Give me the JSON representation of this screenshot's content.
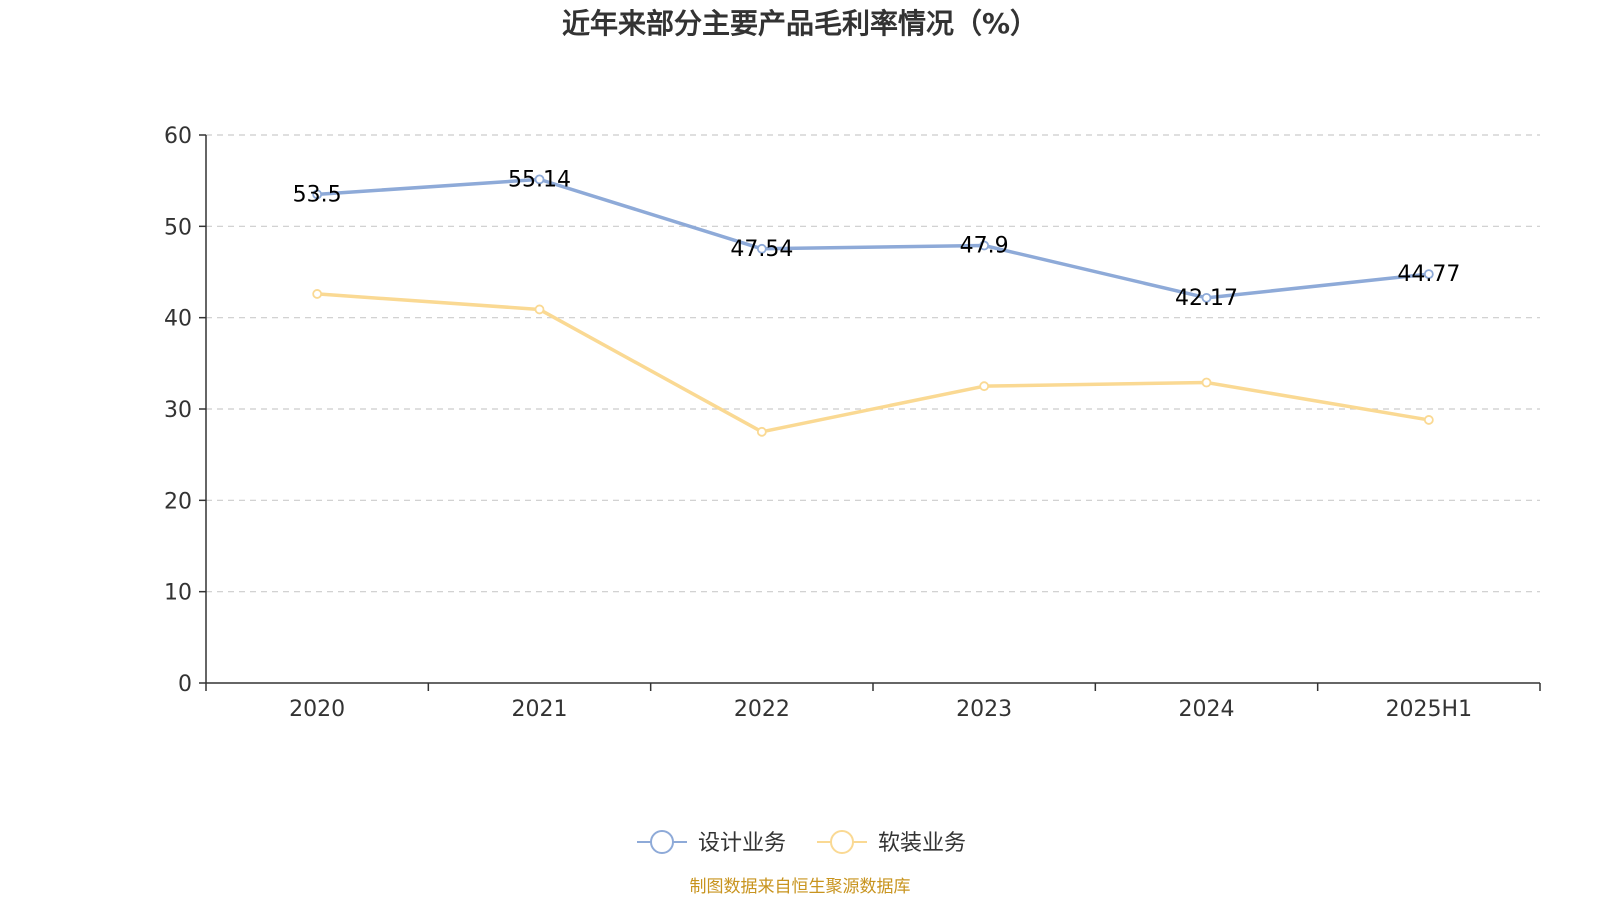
{
  "chart_data": {
    "type": "line",
    "title": "近年来部分主要产品毛利率情况（%）",
    "categories": [
      "2020",
      "2021",
      "2022",
      "2023",
      "2024",
      "2025H1"
    ],
    "ylim": [
      0,
      60
    ],
    "yticks": [
      0,
      10,
      20,
      30,
      40,
      50,
      60
    ],
    "grid": true,
    "legend_position": "bottom-center",
    "series": [
      {
        "name": "设计业务",
        "color": "#8eaad8",
        "values": [
          53.5,
          55.14,
          47.54,
          47.9,
          42.17,
          44.77
        ],
        "labels": [
          "53.5",
          "55.14",
          "47.54",
          "47.9",
          "42.17",
          "44.77"
        ],
        "show_labels": true
      },
      {
        "name": "软装业务",
        "color": "#fad993",
        "values": [
          42.6,
          40.9,
          27.5,
          32.5,
          32.9,
          28.8
        ],
        "labels": [
          "",
          "",
          "",
          "",
          "",
          ""
        ],
        "show_labels": false
      }
    ],
    "source": "制图数据来自恒生聚源数据库"
  }
}
